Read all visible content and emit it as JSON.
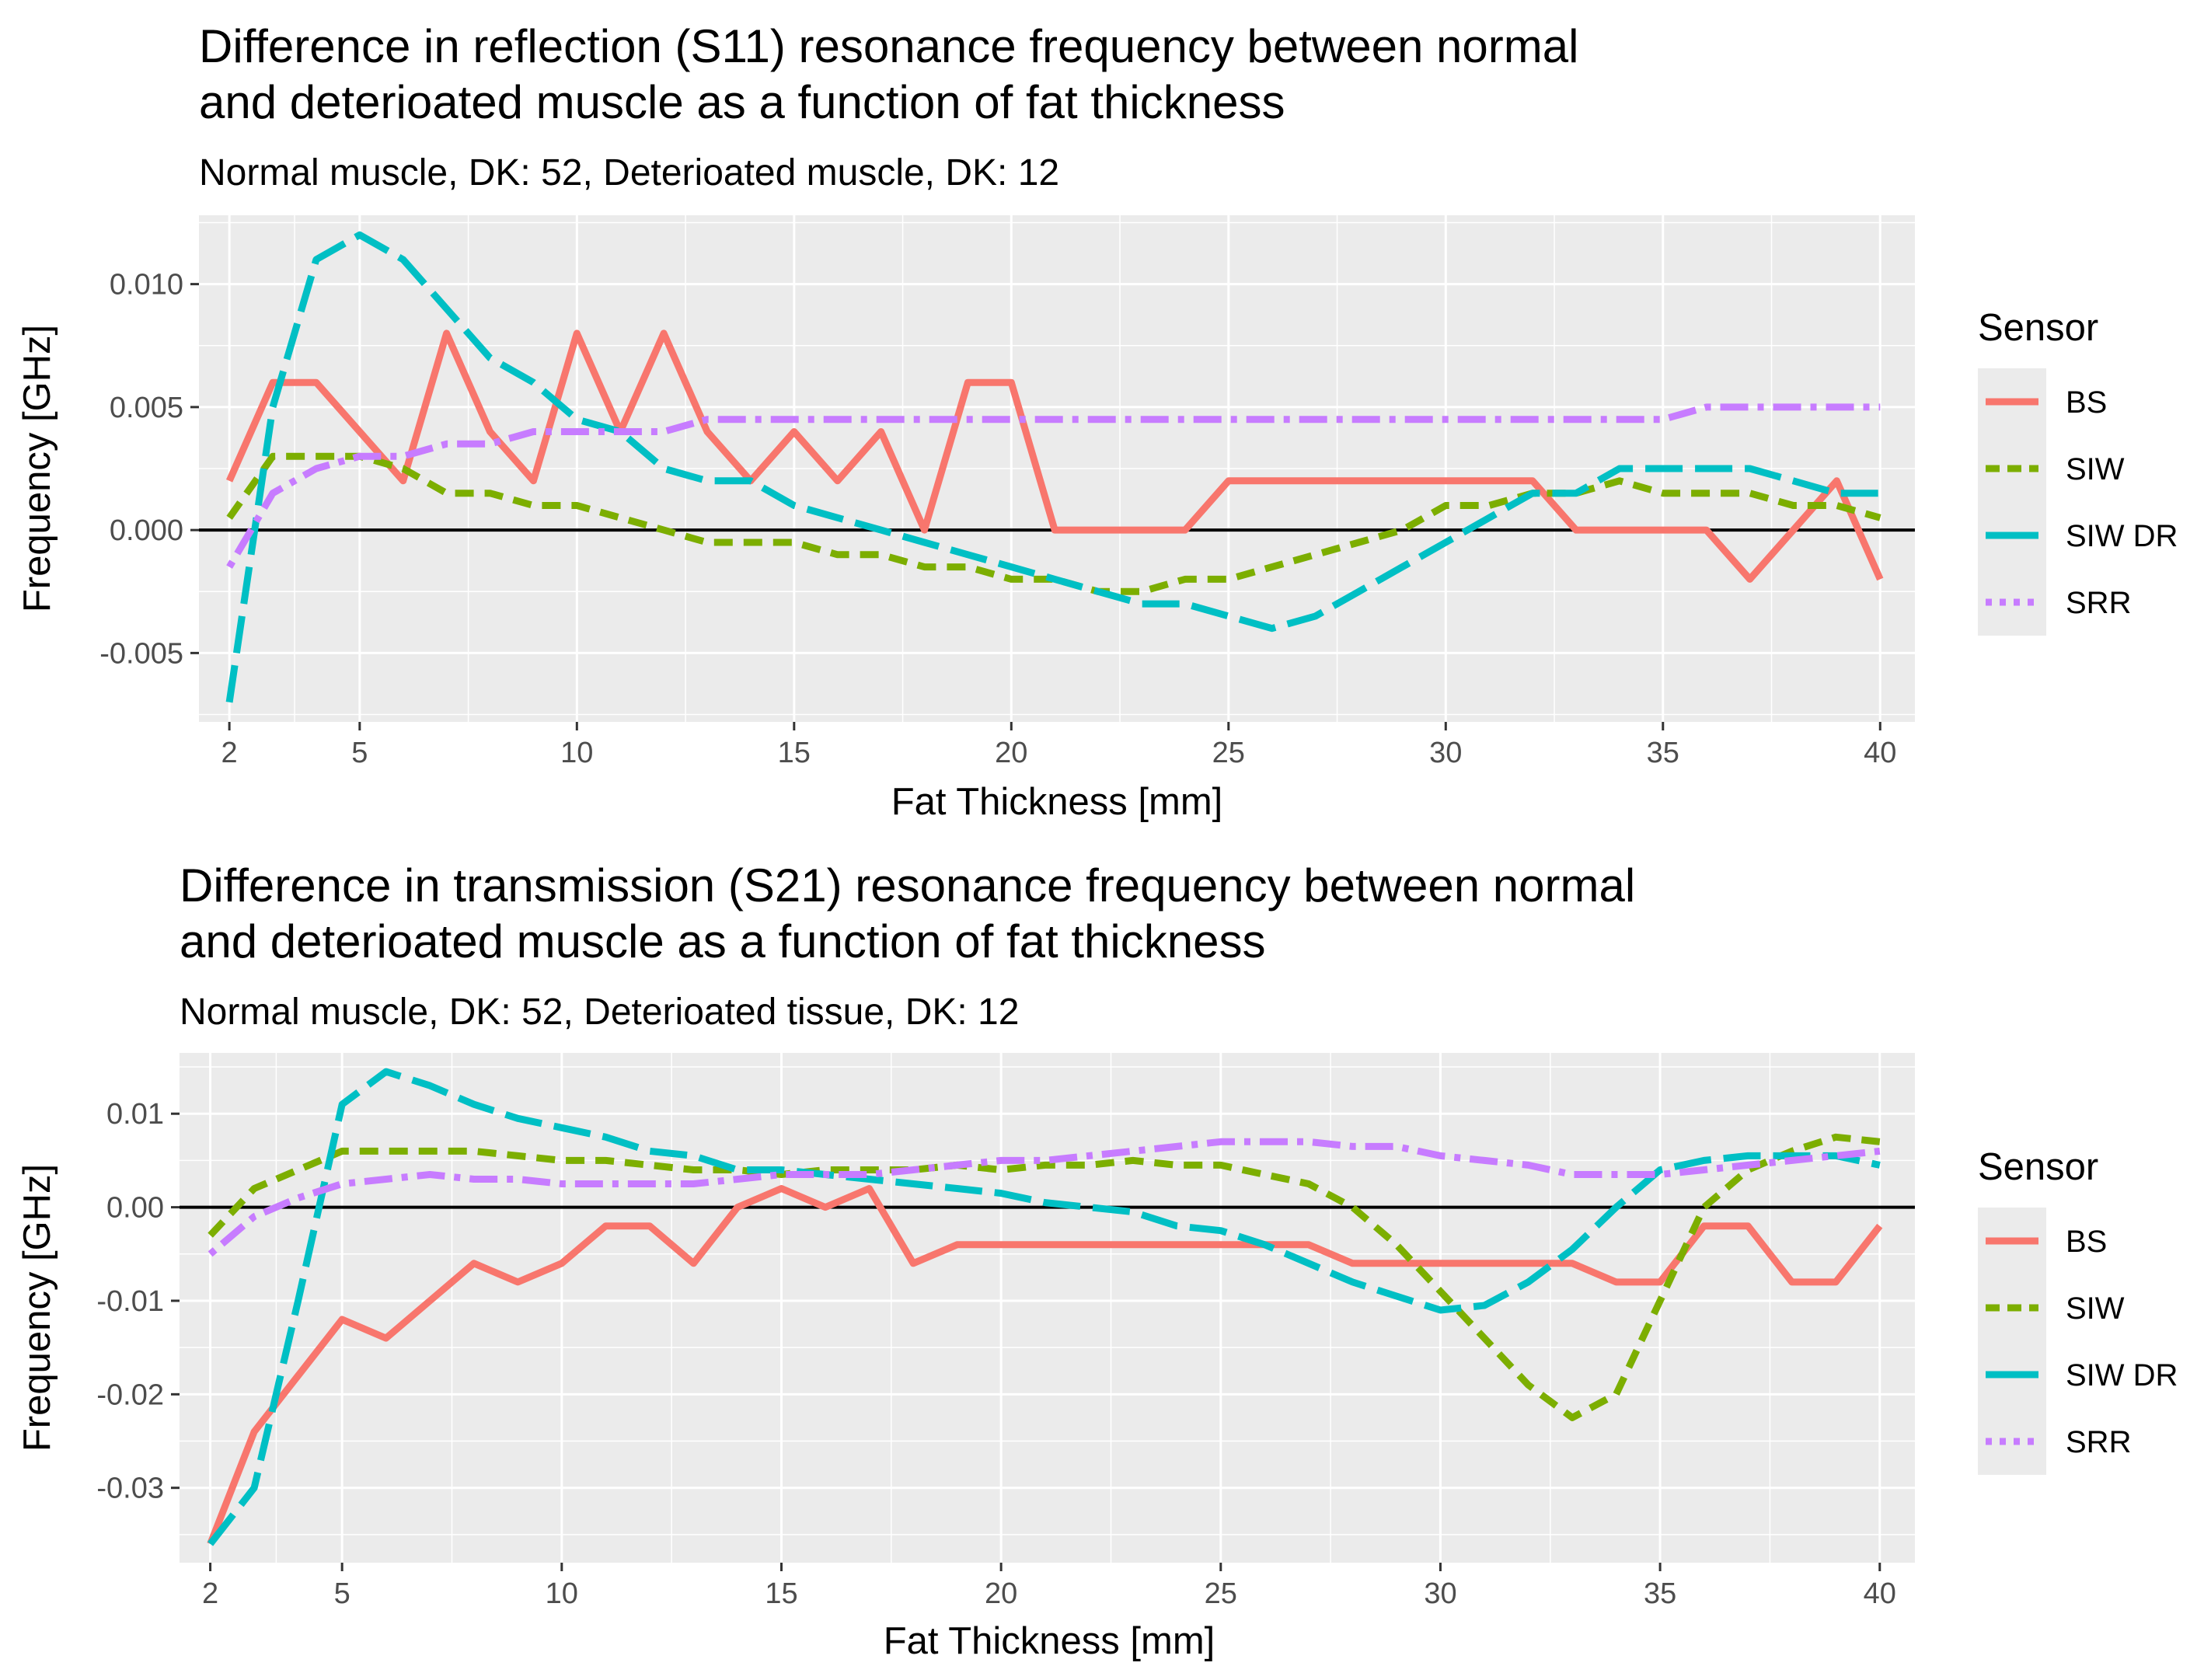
{
  "chart_data": [
    {
      "type": "line",
      "title_lines": [
        "Difference in reflection (S11) resonance frequency between normal",
        "and deterioated muscle as a function of fat thickness"
      ],
      "subtitle": "Normal muscle, DK: 52, Deterioated muscle, DK: 12",
      "xlabel": "Fat Thickness [mm]",
      "ylabel": "Frequency [GHz]",
      "xlim": [
        1.3,
        40.8
      ],
      "ylim": [
        -0.0078,
        0.0128
      ],
      "xticks": [
        2,
        5,
        10,
        15,
        20,
        25,
        30,
        35,
        40
      ],
      "xtick_labels": [
        "2",
        "5",
        "10",
        "15",
        "20",
        "25",
        "30",
        "35",
        "40"
      ],
      "yticks": [
        -0.005,
        0,
        0.005,
        0.01
      ],
      "ytick_labels": [
        "-0.005",
        "0.000",
        "0.005",
        "0.010"
      ],
      "hline": 0,
      "legend_title": "Sensor",
      "series": [
        {
          "name": "BS",
          "color": "#F8766D",
          "dash": "solid",
          "x": [
            2,
            3,
            4,
            5,
            6,
            7,
            8,
            9,
            10,
            11,
            12,
            13,
            14,
            15,
            16,
            17,
            18,
            19,
            20,
            21,
            22,
            23,
            24,
            25,
            26,
            27,
            28,
            29,
            30,
            31,
            32,
            33,
            34,
            35,
            36,
            37,
            38,
            39,
            40
          ],
          "y": [
            0.002,
            0.006,
            0.006,
            0.004,
            0.002,
            0.008,
            0.004,
            0.002,
            0.008,
            0.004,
            0.008,
            0.004,
            0.002,
            0.004,
            0.002,
            0.004,
            0,
            0.006,
            0.006,
            0,
            0,
            0,
            0,
            0.002,
            0.002,
            0.002,
            0.002,
            0.002,
            0.002,
            0.002,
            0.002,
            0,
            0,
            0,
            0,
            -0.002,
            0,
            0.002,
            -0.002
          ]
        },
        {
          "name": "SIW",
          "color": "#7CAE00",
          "dash": "dash",
          "x": [
            2,
            3,
            4,
            5,
            6,
            7,
            8,
            9,
            10,
            11,
            12,
            13,
            14,
            15,
            16,
            17,
            18,
            19,
            20,
            21,
            22,
            23,
            24,
            25,
            26,
            27,
            28,
            29,
            30,
            31,
            32,
            33,
            34,
            35,
            36,
            37,
            38,
            39,
            40
          ],
          "y": [
            0.0005,
            0.003,
            0.003,
            0.003,
            0.0025,
            0.0015,
            0.0015,
            0.001,
            0.001,
            0.0005,
            0,
            -0.0005,
            -0.0005,
            -0.0005,
            -0.001,
            -0.001,
            -0.0015,
            -0.0015,
            -0.002,
            -0.002,
            -0.0025,
            -0.0025,
            -0.002,
            -0.002,
            -0.0015,
            -0.001,
            -0.0005,
            0,
            0.001,
            0.001,
            0.0015,
            0.0015,
            0.002,
            0.0015,
            0.0015,
            0.0015,
            0.001,
            0.001,
            0.0005
          ]
        },
        {
          "name": "SIW DR",
          "color": "#00BFC4",
          "dash": "longdash",
          "x": [
            2,
            3,
            4,
            5,
            6,
            7,
            8,
            9,
            10,
            11,
            12,
            13,
            14,
            15,
            16,
            17,
            18,
            19,
            20,
            21,
            22,
            23,
            24,
            25,
            26,
            27,
            28,
            29,
            30,
            31,
            32,
            33,
            34,
            35,
            36,
            37,
            38,
            39,
            40
          ],
          "y": [
            -0.007,
            0.005,
            0.011,
            0.012,
            0.011,
            0.009,
            0.007,
            0.006,
            0.0045,
            0.004,
            0.0025,
            0.002,
            0.002,
            0.001,
            0.0005,
            0,
            -0.0005,
            -0.001,
            -0.0015,
            -0.002,
            -0.0025,
            -0.003,
            -0.003,
            -0.0035,
            -0.004,
            -0.0035,
            -0.0025,
            -0.0015,
            -0.0005,
            0.0005,
            0.0015,
            0.0015,
            0.0025,
            0.0025,
            0.0025,
            0.0025,
            0.002,
            0.0015,
            0.0015
          ]
        },
        {
          "name": "SRR",
          "color": "#C77CFF",
          "dash": "dotdash",
          "x": [
            2,
            3,
            4,
            5,
            6,
            7,
            8,
            9,
            10,
            11,
            12,
            13,
            14,
            15,
            16,
            17,
            18,
            19,
            20,
            21,
            22,
            23,
            24,
            25,
            26,
            27,
            28,
            29,
            30,
            31,
            32,
            33,
            34,
            35,
            36,
            37,
            38,
            39,
            40
          ],
          "y": [
            -0.0015,
            0.0015,
            0.0025,
            0.003,
            0.003,
            0.0035,
            0.0035,
            0.004,
            0.004,
            0.004,
            0.004,
            0.0045,
            0.0045,
            0.0045,
            0.0045,
            0.0045,
            0.0045,
            0.0045,
            0.0045,
            0.0045,
            0.0045,
            0.0045,
            0.0045,
            0.0045,
            0.0045,
            0.0045,
            0.0045,
            0.0045,
            0.0045,
            0.0045,
            0.0045,
            0.0045,
            0.0045,
            0.0045,
            0.005,
            0.005,
            0.005,
            0.005,
            0.005
          ]
        }
      ]
    },
    {
      "type": "line",
      "title_lines": [
        "Difference in transmission (S21) resonance frequency between normal",
        "and deterioated muscle as a function of fat thickness"
      ],
      "subtitle": "Normal muscle, DK: 52, Deterioated tissue, DK: 12",
      "xlabel": "Fat Thickness [mm]",
      "ylabel": "Frequency [GHz]",
      "xlim": [
        1.3,
        40.8
      ],
      "ylim": [
        -0.038,
        0.0165
      ],
      "xticks": [
        2,
        5,
        10,
        15,
        20,
        25,
        30,
        35,
        40
      ],
      "xtick_labels": [
        "2",
        "5",
        "10",
        "15",
        "20",
        "25",
        "30",
        "35",
        "40"
      ],
      "yticks": [
        -0.03,
        -0.02,
        -0.01,
        0,
        0.01
      ],
      "ytick_labels": [
        "-0.03",
        "-0.02",
        "-0.01",
        "0.00",
        "0.01"
      ],
      "hline": 0,
      "legend_title": "Sensor",
      "series": [
        {
          "name": "BS",
          "color": "#F8766D",
          "dash": "solid",
          "x": [
            2,
            3,
            4,
            5,
            6,
            7,
            8,
            9,
            10,
            11,
            12,
            13,
            14,
            15,
            16,
            17,
            18,
            19,
            20,
            21,
            22,
            23,
            24,
            25,
            26,
            27,
            28,
            29,
            30,
            31,
            32,
            33,
            34,
            35,
            36,
            37,
            38,
            39,
            40
          ],
          "y": [
            -0.036,
            -0.024,
            -0.018,
            -0.012,
            -0.014,
            -0.01,
            -0.006,
            -0.008,
            -0.006,
            -0.002,
            -0.002,
            -0.006,
            0,
            0.002,
            0,
            0.002,
            -0.006,
            -0.004,
            -0.004,
            -0.004,
            -0.004,
            -0.004,
            -0.004,
            -0.004,
            -0.004,
            -0.004,
            -0.006,
            -0.006,
            -0.006,
            -0.006,
            -0.006,
            -0.006,
            -0.008,
            -0.008,
            -0.002,
            -0.002,
            -0.008,
            -0.008,
            -0.002
          ]
        },
        {
          "name": "SIW",
          "color": "#7CAE00",
          "dash": "dash",
          "x": [
            2,
            3,
            4,
            5,
            6,
            7,
            8,
            9,
            10,
            11,
            12,
            13,
            14,
            15,
            16,
            17,
            18,
            19,
            20,
            21,
            22,
            23,
            24,
            25,
            26,
            27,
            28,
            29,
            30,
            31,
            32,
            33,
            34,
            35,
            36,
            37,
            38,
            39,
            40
          ],
          "y": [
            -0.003,
            0.002,
            0.004,
            0.006,
            0.006,
            0.006,
            0.006,
            0.0055,
            0.005,
            0.005,
            0.0045,
            0.004,
            0.004,
            0.0035,
            0.004,
            0.004,
            0.004,
            0.0045,
            0.004,
            0.0045,
            0.0045,
            0.005,
            0.0045,
            0.0045,
            0.0035,
            0.0025,
            0,
            -0.004,
            -0.009,
            -0.014,
            -0.019,
            -0.0225,
            -0.02,
            -0.01,
            0,
            0.004,
            0.006,
            0.0075,
            0.007
          ]
        },
        {
          "name": "SIW DR",
          "color": "#00BFC4",
          "dash": "longdash",
          "x": [
            2,
            3,
            4,
            5,
            6,
            7,
            8,
            9,
            10,
            11,
            12,
            13,
            14,
            15,
            16,
            17,
            18,
            19,
            20,
            21,
            22,
            23,
            24,
            25,
            26,
            27,
            28,
            29,
            30,
            31,
            32,
            33,
            34,
            35,
            36,
            37,
            38,
            39,
            40
          ],
          "y": [
            -0.036,
            -0.03,
            -0.01,
            0.011,
            0.0145,
            0.013,
            0.011,
            0.0095,
            0.0085,
            0.0075,
            0.006,
            0.0055,
            0.004,
            0.004,
            0.0035,
            0.003,
            0.0025,
            0.002,
            0.0015,
            0.0005,
            0,
            -0.0005,
            -0.002,
            -0.0025,
            -0.004,
            -0.006,
            -0.008,
            -0.0095,
            -0.011,
            -0.0105,
            -0.008,
            -0.0045,
            0,
            0.004,
            0.005,
            0.0055,
            0.0055,
            0.0055,
            0.0045
          ]
        },
        {
          "name": "SRR",
          "color": "#C77CFF",
          "dash": "dotdash",
          "x": [
            2,
            3,
            4,
            5,
            6,
            7,
            8,
            9,
            10,
            11,
            12,
            13,
            14,
            15,
            16,
            17,
            18,
            19,
            20,
            21,
            22,
            23,
            24,
            25,
            26,
            27,
            28,
            29,
            30,
            31,
            32,
            33,
            34,
            35,
            36,
            37,
            38,
            39,
            40
          ],
          "y": [
            -0.005,
            -0.001,
            0.001,
            0.0025,
            0.003,
            0.0035,
            0.003,
            0.003,
            0.0025,
            0.0025,
            0.0025,
            0.0025,
            0.003,
            0.0035,
            0.0035,
            0.0035,
            0.004,
            0.0045,
            0.005,
            0.005,
            0.0055,
            0.006,
            0.0065,
            0.007,
            0.007,
            0.007,
            0.0065,
            0.0065,
            0.0055,
            0.005,
            0.0045,
            0.0035,
            0.0035,
            0.0035,
            0.004,
            0.0045,
            0.005,
            0.0055,
            0.006
          ]
        }
      ]
    }
  ]
}
